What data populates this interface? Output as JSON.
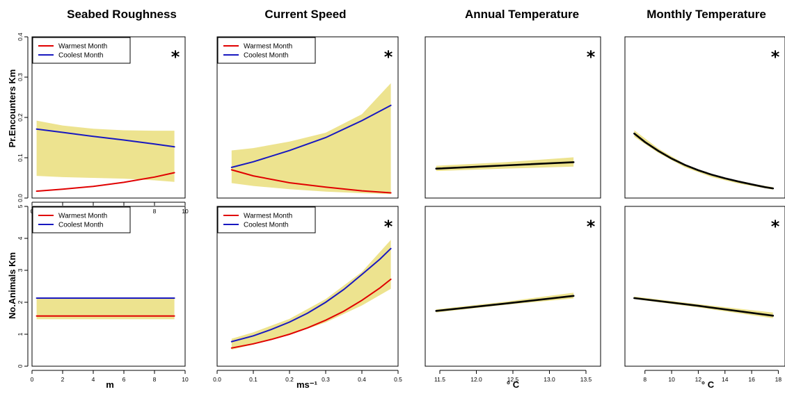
{
  "column_titles": [
    "Seabed Roughness",
    "Current Speed",
    "Annual Temperature",
    "Monthly Temperature"
  ],
  "row_labels": [
    "Pr.Encounters Km",
    "No.Animals Km"
  ],
  "x_units": [
    "m",
    "ms⁻¹",
    "° C",
    "° C"
  ],
  "colors": {
    "warmest": "#e00000",
    "coolest": "#1818c0",
    "single": "#000000",
    "ci_band": "#ede38f"
  },
  "chart_data": [
    {
      "id": "pe-seabed",
      "type": "line",
      "row": 0,
      "col": 0,
      "xlim": [
        0,
        10
      ],
      "ylim": [
        0,
        0.4
      ],
      "xticks": [
        0,
        2,
        4,
        6,
        8,
        10
      ],
      "yticks": [
        0.0,
        0.1,
        0.2,
        0.3,
        0.4
      ],
      "rotate_y_ticks": true,
      "legend": [
        "Warmest Month",
        "Coolest Month"
      ],
      "legend_position": "top-left",
      "significant": true,
      "star": "*",
      "band": {
        "x": [
          0.3,
          2,
          4,
          6,
          8,
          9.3
        ],
        "lower": [
          0.055,
          0.052,
          0.05,
          0.048,
          0.044,
          0.04
        ],
        "upper": [
          0.192,
          0.18,
          0.172,
          0.168,
          0.167,
          0.167
        ]
      },
      "series": [
        {
          "name": "Warmest Month",
          "color": "warmest",
          "x": [
            0.3,
            2,
            4,
            6,
            8,
            9.3
          ],
          "values": [
            0.017,
            0.022,
            0.029,
            0.039,
            0.052,
            0.063
          ]
        },
        {
          "name": "Coolest Month",
          "color": "coolest",
          "x": [
            0.3,
            2,
            4,
            6,
            8,
            9.3
          ],
          "values": [
            0.171,
            0.163,
            0.153,
            0.144,
            0.134,
            0.127
          ]
        }
      ]
    },
    {
      "id": "pe-current",
      "type": "line",
      "row": 0,
      "col": 1,
      "xlim": [
        0,
        0.5
      ],
      "ylim": [
        0,
        0.4
      ],
      "ylim_shared_with": "pe-seabed",
      "legend": [
        "Warmest Month",
        "Coolest Month"
      ],
      "legend_position": "top-left",
      "significant": true,
      "star": "*",
      "band": {
        "x": [
          0.04,
          0.1,
          0.2,
          0.3,
          0.4,
          0.48
        ],
        "lower": [
          0.037,
          0.03,
          0.022,
          0.016,
          0.012,
          0.01
        ],
        "upper": [
          0.118,
          0.124,
          0.14,
          0.162,
          0.208,
          0.285
        ]
      },
      "series": [
        {
          "name": "Warmest Month",
          "color": "warmest",
          "x": [
            0.04,
            0.1,
            0.2,
            0.3,
            0.4,
            0.48
          ],
          "values": [
            0.07,
            0.055,
            0.038,
            0.027,
            0.018,
            0.013
          ]
        },
        {
          "name": "Coolest Month",
          "color": "coolest",
          "x": [
            0.04,
            0.1,
            0.2,
            0.3,
            0.4,
            0.48
          ],
          "values": [
            0.076,
            0.09,
            0.118,
            0.15,
            0.192,
            0.23
          ]
        }
      ]
    },
    {
      "id": "pe-annual",
      "type": "line",
      "row": 0,
      "col": 2,
      "xlim": [
        11.3,
        13.7
      ],
      "ylim": [
        0,
        0.4
      ],
      "ylim_shared_with": "pe-seabed",
      "significant": true,
      "star": "*",
      "band": {
        "x": [
          11.45,
          12.4,
          13.33
        ],
        "lower": [
          0.067,
          0.073,
          0.078
        ],
        "upper": [
          0.08,
          0.089,
          0.101
        ]
      },
      "series": [
        {
          "name": "",
          "color": "single",
          "x": [
            11.45,
            12.4,
            13.33
          ],
          "values": [
            0.073,
            0.081,
            0.089
          ]
        }
      ]
    },
    {
      "id": "pe-monthly",
      "type": "line",
      "row": 0,
      "col": 3,
      "xlim": [
        6.5,
        18.5
      ],
      "ylim": [
        0,
        0.4
      ],
      "ylim_shared_with": "pe-seabed",
      "significant": true,
      "star": "*",
      "band": {
        "x": [
          7.2,
          9,
          11,
          13,
          15,
          17.6
        ],
        "lower": [
          0.152,
          0.112,
          0.076,
          0.052,
          0.036,
          0.021
        ],
        "upper": [
          0.168,
          0.123,
          0.084,
          0.058,
          0.041,
          0.027
        ]
      },
      "series": [
        {
          "name": "",
          "color": "single",
          "x": [
            7.2,
            8,
            9,
            10,
            11,
            12,
            13,
            14,
            15,
            16,
            17,
            17.6
          ],
          "values": [
            0.16,
            0.139,
            0.117,
            0.098,
            0.082,
            0.069,
            0.058,
            0.049,
            0.041,
            0.034,
            0.027,
            0.024
          ]
        }
      ]
    },
    {
      "id": "na-seabed",
      "type": "line",
      "row": 1,
      "col": 0,
      "xlim": [
        0,
        10
      ],
      "ylim": [
        0,
        5
      ],
      "xticks": [
        0,
        2,
        4,
        6,
        8,
        10
      ],
      "yticks": [
        0,
        1,
        2,
        3,
        4,
        5
      ],
      "rotate_y_ticks": true,
      "legend": [
        "Warmest Month",
        "Coolest Month"
      ],
      "legend_position": "top-left",
      "significant": false,
      "band": {
        "x": [
          0.3,
          9.3
        ],
        "lower": [
          1.47,
          1.47
        ],
        "upper": [
          2.15,
          2.15
        ]
      },
      "series": [
        {
          "name": "Warmest Month",
          "color": "warmest",
          "x": [
            0.3,
            9.3
          ],
          "values": [
            1.57,
            1.57
          ]
        },
        {
          "name": "Coolest Month",
          "color": "coolest",
          "x": [
            0.3,
            9.3
          ],
          "values": [
            2.13,
            2.13
          ]
        }
      ]
    },
    {
      "id": "na-current",
      "type": "line",
      "row": 1,
      "col": 1,
      "xlim": [
        0,
        0.5
      ],
      "ylim": [
        0,
        5
      ],
      "xticks": [
        0.0,
        0.1,
        0.2,
        0.3,
        0.4,
        0.5
      ],
      "xtick_decimals": 1,
      "legend": [
        "Warmest Month",
        "Coolest Month"
      ],
      "legend_position": "top-left",
      "significant": true,
      "star": "*",
      "band": {
        "x": [
          0.04,
          0.1,
          0.2,
          0.3,
          0.4,
          0.48
        ],
        "lower": [
          0.52,
          0.68,
          0.98,
          1.37,
          1.9,
          2.42
        ],
        "upper": [
          0.86,
          1.06,
          1.48,
          2.1,
          2.95,
          3.95
        ]
      },
      "series": [
        {
          "name": "Warmest Month",
          "color": "warmest",
          "x": [
            0.04,
            0.1,
            0.15,
            0.2,
            0.25,
            0.3,
            0.35,
            0.4,
            0.45,
            0.48
          ],
          "values": [
            0.57,
            0.7,
            0.84,
            1.0,
            1.2,
            1.44,
            1.72,
            2.06,
            2.45,
            2.72
          ]
        },
        {
          "name": "Coolest Month",
          "color": "coolest",
          "x": [
            0.04,
            0.1,
            0.15,
            0.2,
            0.25,
            0.3,
            0.35,
            0.4,
            0.45,
            0.48
          ],
          "values": [
            0.77,
            0.95,
            1.15,
            1.38,
            1.66,
            2.0,
            2.4,
            2.87,
            3.35,
            3.68
          ]
        }
      ]
    },
    {
      "id": "na-annual",
      "type": "line",
      "row": 1,
      "col": 2,
      "xlim": [
        11.3,
        13.7
      ],
      "ylim": [
        0,
        5
      ],
      "xticks": [
        11.5,
        12.0,
        12.5,
        13.0,
        13.5
      ],
      "xtick_decimals": 1,
      "significant": true,
      "star": "*",
      "band": {
        "x": [
          11.45,
          12.4,
          13.33
        ],
        "lower": [
          1.68,
          1.92,
          2.12
        ],
        "upper": [
          1.78,
          2.02,
          2.3
        ]
      },
      "series": [
        {
          "name": "",
          "color": "single",
          "x": [
            11.45,
            12.4,
            13.33
          ],
          "values": [
            1.73,
            1.96,
            2.2
          ]
        }
      ]
    },
    {
      "id": "na-monthly",
      "type": "line",
      "row": 1,
      "col": 3,
      "xlim": [
        6.5,
        18.5
      ],
      "ylim": [
        0,
        5
      ],
      "xticks": [
        8,
        10,
        12,
        14,
        16,
        18
      ],
      "significant": true,
      "star": "*",
      "band": {
        "x": [
          7.2,
          12,
          17.6
        ],
        "lower": [
          2.1,
          1.84,
          1.5
        ],
        "upper": [
          2.18,
          1.94,
          1.68
        ]
      },
      "series": [
        {
          "name": "",
          "color": "single",
          "x": [
            7.2,
            12,
            17.6
          ],
          "values": [
            2.13,
            1.89,
            1.58
          ]
        }
      ]
    }
  ]
}
